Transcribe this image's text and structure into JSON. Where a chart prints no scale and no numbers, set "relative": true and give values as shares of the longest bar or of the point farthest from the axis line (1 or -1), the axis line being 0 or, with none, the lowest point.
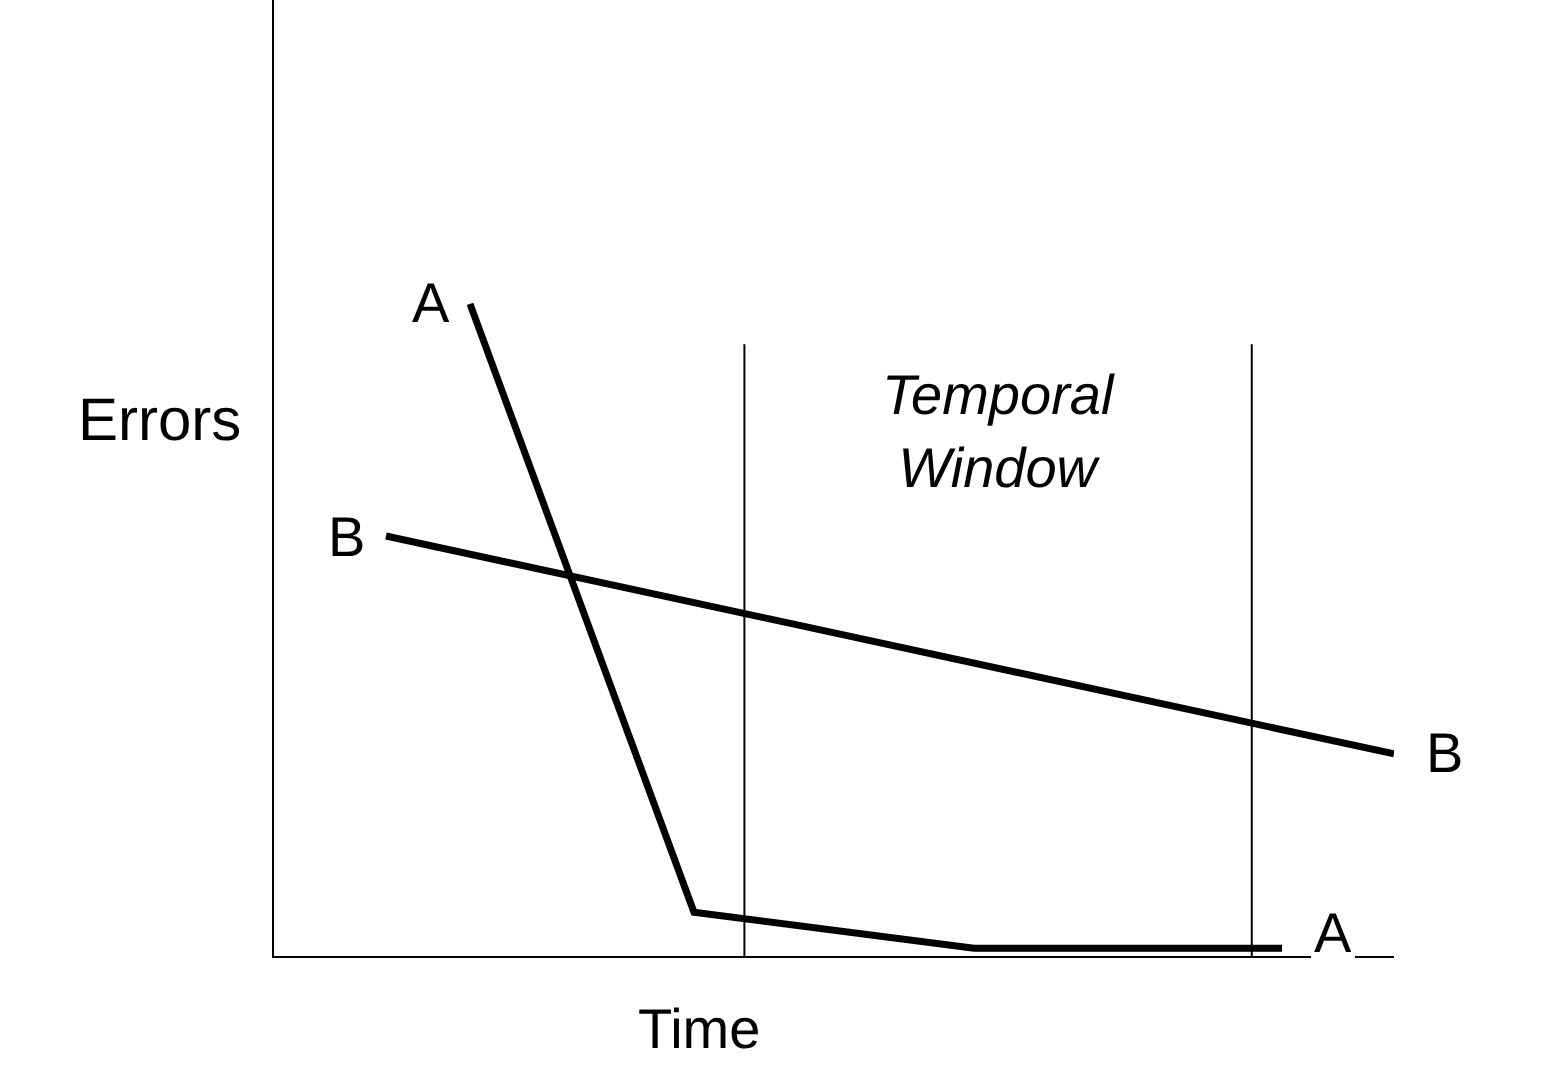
{
  "chart_data": {
    "type": "line",
    "relative": true,
    "xlabel": "Time",
    "ylabel": "Errors",
    "legend": false,
    "marker": "none",
    "line_style": "solid",
    "categories": [
      null,
      null,
      null,
      null,
      null,
      null,
      null,
      null,
      null,
      null,
      null,
      null,
      null,
      null,
      null,
      null,
      null,
      null,
      null,
      null,
      null,
      null,
      null,
      null,
      null,
      null,
      null,
      null,
      null,
      null,
      null,
      null,
      null,
      null,
      null,
      null,
      null,
      null,
      null,
      null,
      null
    ],
    "series": [
      {
        "name": "A",
        "color": "#000000",
        "values": [
          null,
          null,
          null,
          null,
          null,
          null,
          null,
          1,
          null,
          null,
          null,
          null,
          null,
          null,
          null,
          0.067,
          null,
          null,
          null,
          null,
          null,
          null,
          null,
          null,
          null,
          0.012,
          null,
          null,
          null,
          null,
          null,
          null,
          null,
          null,
          null,
          null,
          0.012,
          null,
          null,
          null,
          null
        ]
      },
      {
        "name": "B",
        "color": "#000000",
        "values": [
          null,
          null,
          null,
          null,
          0.644,
          null,
          null,
          null,
          null,
          null,
          null,
          null,
          null,
          null,
          null,
          null,
          null,
          null,
          null,
          null,
          null,
          null,
          null,
          null,
          null,
          null,
          null,
          null,
          null,
          null,
          null,
          null,
          null,
          null,
          null,
          null,
          null,
          null,
          null,
          null,
          0.31
        ]
      }
    ],
    "annotations": [
      "Temporal\nWindow"
    ]
  }
}
